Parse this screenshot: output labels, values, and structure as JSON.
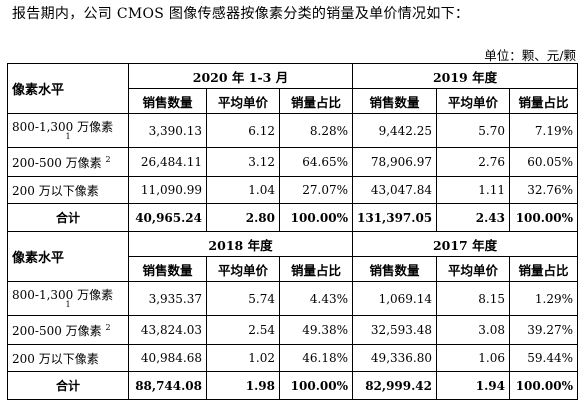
{
  "intro": "报告期内，公司 CMOS 图像传感器按像素分类的销量及单价情况如下：",
  "unit": "单位：颗、元/颗",
  "corner_label": "像素水平",
  "column_headers": [
    "销售数量",
    "平均单价",
    "销量占比"
  ],
  "blocks": [
    {
      "periods": [
        "2020 年 1-3 月",
        "2019 年度"
      ],
      "rows": [
        {
          "label": "800-1,300 万像素",
          "note_sub": "1",
          "values": [
            "3,390.13",
            "6.12",
            "8.28%",
            "9,442.25",
            "5.70",
            "7.19%"
          ]
        },
        {
          "label": "200-500 万像素",
          "note_sup": "2",
          "values": [
            "26,484.11",
            "3.12",
            "64.65%",
            "78,906.97",
            "2.76",
            "60.05%"
          ]
        },
        {
          "label": "200 万以下像素",
          "values": [
            "11,090.99",
            "1.04",
            "27.07%",
            "43,047.84",
            "1.11",
            "32.76%"
          ]
        },
        {
          "label": "合计",
          "values": [
            "40,965.24",
            "2.80",
            "100.00%",
            "131,397.05",
            "2.43",
            "100.00%"
          ]
        }
      ]
    },
    {
      "periods": [
        "2018 年度",
        "2017 年度"
      ],
      "rows": [
        {
          "label": "800-1,300 万像素",
          "note_sub": "1",
          "values": [
            "3,935.37",
            "5.74",
            "4.43%",
            "1,069.14",
            "8.15",
            "1.29%"
          ]
        },
        {
          "label": "200-500 万像素",
          "note_sup": "2",
          "values": [
            "43,824.03",
            "2.54",
            "49.38%",
            "32,593.48",
            "3.08",
            "39.27%"
          ]
        },
        {
          "label": "200 万以下像素",
          "values": [
            "40,984.68",
            "1.02",
            "46.18%",
            "49,336.80",
            "1.06",
            "59.44%"
          ]
        },
        {
          "label": "合计",
          "values": [
            "88,744.08",
            "1.98",
            "100.00%",
            "82,999.42",
            "1.94",
            "100.00%"
          ]
        }
      ]
    }
  ]
}
